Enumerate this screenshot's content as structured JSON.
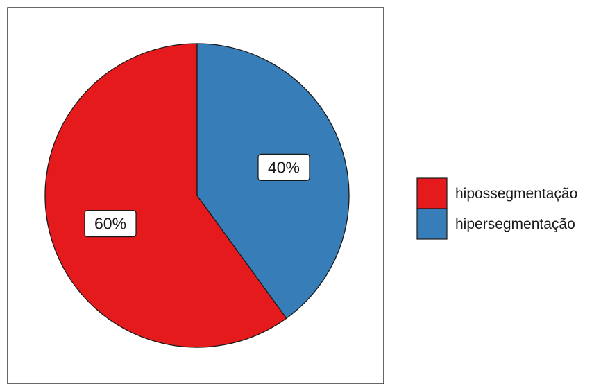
{
  "chart_data": {
    "type": "pie",
    "title": "",
    "categories": [
      "hipossegmentação",
      "hipersegmentação"
    ],
    "values": [
      60,
      40
    ],
    "labels": [
      "60%",
      "40%"
    ],
    "colors": [
      "#e41a1c",
      "#377eb8"
    ],
    "legend_position": "right",
    "border": true,
    "start": "top",
    "direction": "counterclockwise"
  }
}
